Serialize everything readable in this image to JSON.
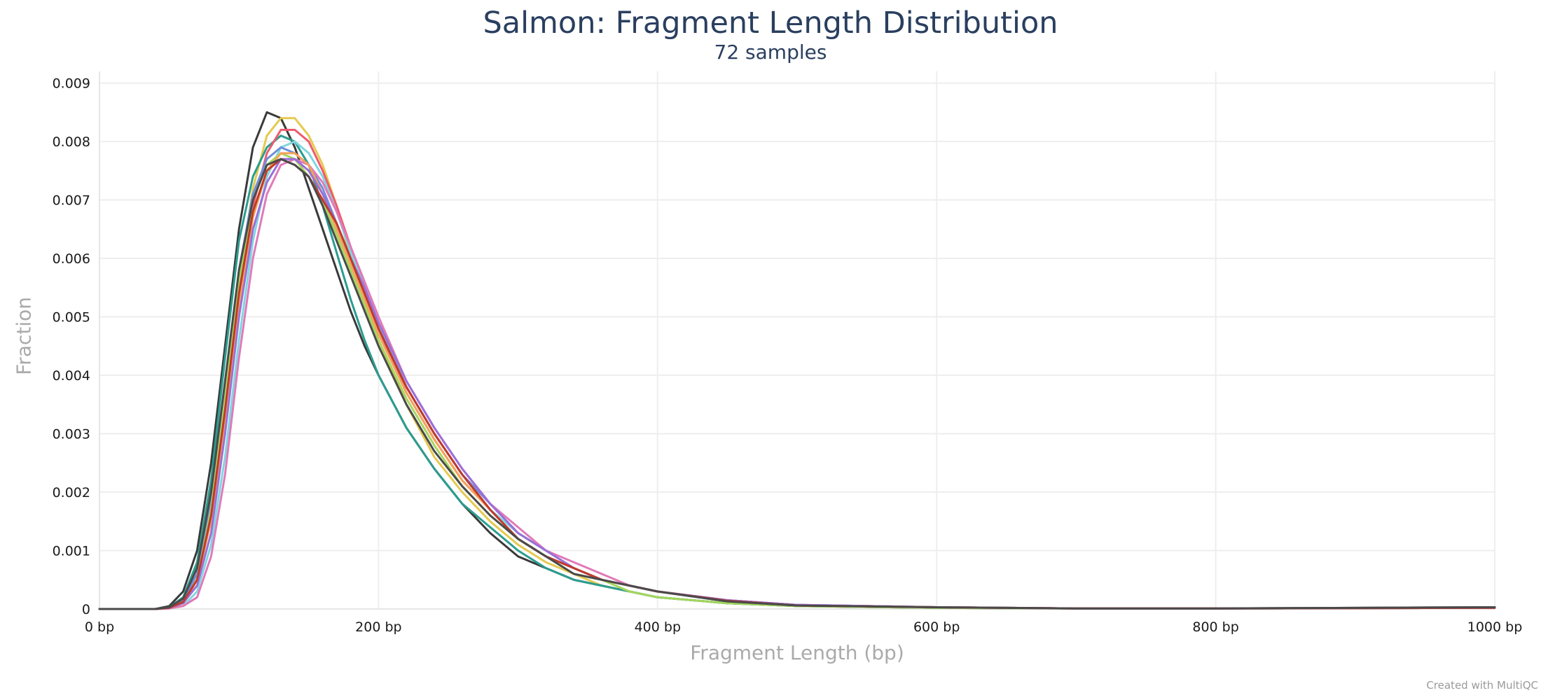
{
  "chart_data": {
    "type": "line",
    "title": "Salmon: Fragment Length Distribution",
    "subtitle": "72 samples",
    "xlabel": "Fragment Length (bp)",
    "ylabel": "Fraction",
    "xlim": [
      0,
      1000
    ],
    "ylim": [
      0,
      0.0092
    ],
    "x_ticks": [
      {
        "value": 0,
        "label": "0 bp"
      },
      {
        "value": 200,
        "label": "200 bp"
      },
      {
        "value": 400,
        "label": "400 bp"
      },
      {
        "value": 600,
        "label": "600 bp"
      },
      {
        "value": 800,
        "label": "800 bp"
      },
      {
        "value": 1000,
        "label": "1000 bp"
      }
    ],
    "y_ticks": [
      {
        "value": 0,
        "label": "0"
      },
      {
        "value": 0.001,
        "label": "0.001"
      },
      {
        "value": 0.002,
        "label": "0.002"
      },
      {
        "value": 0.003,
        "label": "0.003"
      },
      {
        "value": 0.004,
        "label": "0.004"
      },
      {
        "value": 0.005,
        "label": "0.005"
      },
      {
        "value": 0.006,
        "label": "0.006"
      },
      {
        "value": 0.007,
        "label": "0.007"
      },
      {
        "value": 0.008,
        "label": "0.008"
      },
      {
        "value": 0.009,
        "label": "0.009"
      }
    ],
    "grid": true,
    "legend": "none",
    "x": [
      0,
      40,
      50,
      60,
      70,
      80,
      90,
      100,
      110,
      120,
      130,
      140,
      150,
      160,
      170,
      180,
      190,
      200,
      220,
      240,
      260,
      280,
      300,
      320,
      340,
      360,
      380,
      400,
      450,
      500,
      600,
      700,
      800,
      1000
    ],
    "series": [
      {
        "color": "#3a3a3a",
        "values": [
          0,
          0,
          5e-05,
          0.0003,
          0.001,
          0.0025,
          0.0045,
          0.0065,
          0.0079,
          0.0085,
          0.0084,
          0.0079,
          0.0072,
          0.0065,
          0.0058,
          0.0051,
          0.0045,
          0.004,
          0.0031,
          0.0024,
          0.0018,
          0.0013,
          0.0009,
          0.0007,
          0.0005,
          0.0004,
          0.0003,
          0.0002,
          0.0001,
          5e-05,
          2e-05,
          1e-05,
          1e-05,
          3e-05
        ]
      },
      {
        "color": "#e5c94f",
        "values": [
          0,
          0,
          2e-05,
          0.0001,
          0.0006,
          0.0018,
          0.0036,
          0.0056,
          0.0072,
          0.0081,
          0.0084,
          0.0084,
          0.0081,
          0.0076,
          0.0069,
          0.006,
          0.0053,
          0.0046,
          0.0035,
          0.0026,
          0.002,
          0.0015,
          0.0011,
          0.0008,
          0.0006,
          0.0004,
          0.0003,
          0.0002,
          0.0001,
          5e-05,
          2e-05,
          1e-05,
          1e-05,
          2e-05
        ]
      },
      {
        "color": "#2a9d8f",
        "values": [
          0,
          0,
          3e-05,
          0.0002,
          0.0008,
          0.0022,
          0.0043,
          0.0063,
          0.0074,
          0.0079,
          0.0081,
          0.008,
          0.0076,
          0.0069,
          0.0061,
          0.0053,
          0.0046,
          0.004,
          0.0031,
          0.0024,
          0.0018,
          0.0014,
          0.001,
          0.0007,
          0.0005,
          0.0004,
          0.0003,
          0.0002,
          0.0001,
          5e-05,
          2e-05,
          1e-05,
          1e-05,
          2e-05
        ]
      },
      {
        "color": "#ef5a6f",
        "values": [
          0,
          0,
          2e-05,
          0.0001,
          0.0005,
          0.0016,
          0.0034,
          0.0054,
          0.0069,
          0.0078,
          0.0082,
          0.0082,
          0.008,
          0.0075,
          0.0069,
          0.0062,
          0.0055,
          0.0048,
          0.0037,
          0.0029,
          0.0022,
          0.0017,
          0.0012,
          0.0009,
          0.0007,
          0.0005,
          0.0004,
          0.0003,
          0.00015,
          7e-05,
          3e-05,
          1e-05,
          1e-05,
          2e-05
        ]
      },
      {
        "color": "#7fd6e0",
        "values": [
          0,
          0,
          1e-05,
          5e-05,
          0.0003,
          0.0011,
          0.0026,
          0.0046,
          0.0063,
          0.0074,
          0.0079,
          0.008,
          0.0078,
          0.0074,
          0.0068,
          0.0061,
          0.0055,
          0.0049,
          0.0038,
          0.003,
          0.0023,
          0.0017,
          0.0013,
          0.001,
          0.0007,
          0.0005,
          0.0004,
          0.0003,
          0.00015,
          7e-05,
          3e-05,
          1e-05,
          1e-05,
          2e-05
        ]
      },
      {
        "color": "#6f8fdc",
        "values": [
          0,
          0,
          2e-05,
          0.00015,
          0.0006,
          0.0019,
          0.0038,
          0.0058,
          0.0071,
          0.0077,
          0.0079,
          0.0078,
          0.0076,
          0.0072,
          0.0066,
          0.006,
          0.0054,
          0.0048,
          0.0038,
          0.003,
          0.0023,
          0.0018,
          0.0013,
          0.001,
          0.0007,
          0.0005,
          0.0004,
          0.0003,
          0.00015,
          7e-05,
          3e-05,
          1e-05,
          1e-05,
          2e-05
        ]
      },
      {
        "color": "#a4d65e",
        "values": [
          0,
          0,
          2e-05,
          0.0001,
          0.0005,
          0.0017,
          0.0036,
          0.0056,
          0.007,
          0.0076,
          0.0078,
          0.0077,
          0.0074,
          0.007,
          0.0064,
          0.0058,
          0.0052,
          0.0046,
          0.0036,
          0.0028,
          0.0021,
          0.0016,
          0.0012,
          0.0009,
          0.0006,
          0.0005,
          0.0003,
          0.0002,
          0.0001,
          5e-05,
          2e-05,
          1e-05,
          1e-05,
          2e-05
        ]
      },
      {
        "color": "#e07ab8",
        "values": [
          0,
          0,
          1e-05,
          5e-05,
          0.0002,
          0.0009,
          0.0023,
          0.0043,
          0.006,
          0.0071,
          0.0076,
          0.0077,
          0.0076,
          0.0073,
          0.0068,
          0.0062,
          0.0056,
          0.005,
          0.0039,
          0.0031,
          0.0024,
          0.0018,
          0.0014,
          0.001,
          0.0008,
          0.0006,
          0.0004,
          0.0003,
          0.00015,
          7e-05,
          3e-05,
          1e-05,
          1e-05,
          2e-05
        ]
      },
      {
        "color": "#f4a259",
        "values": [
          0,
          0,
          2e-05,
          0.0001,
          0.0005,
          0.0015,
          0.0032,
          0.0052,
          0.0067,
          0.0075,
          0.0078,
          0.0078,
          0.0076,
          0.0071,
          0.0065,
          0.0059,
          0.0053,
          0.0047,
          0.0037,
          0.0029,
          0.0022,
          0.0017,
          0.0012,
          0.0009,
          0.0007,
          0.0005,
          0.0004,
          0.0003,
          0.00014,
          6e-05,
          3e-05,
          1e-05,
          1e-05,
          2e-05
        ]
      },
      {
        "color": "#9b6fd8",
        "values": [
          0,
          0,
          2e-05,
          0.0001,
          0.0004,
          0.0013,
          0.003,
          0.005,
          0.0065,
          0.0073,
          0.0077,
          0.0077,
          0.0075,
          0.0071,
          0.0066,
          0.006,
          0.0055,
          0.0049,
          0.0039,
          0.0031,
          0.0024,
          0.0018,
          0.0013,
          0.001,
          0.0007,
          0.0005,
          0.0004,
          0.0003,
          0.00015,
          7e-05,
          3e-05,
          1e-05,
          1e-05,
          2e-05
        ]
      },
      {
        "color": "#c0392b",
        "values": [
          0,
          0,
          2e-05,
          0.00012,
          0.0005,
          0.0016,
          0.0034,
          0.0054,
          0.0068,
          0.0075,
          0.0077,
          0.0076,
          0.0074,
          0.007,
          0.0066,
          0.006,
          0.0054,
          0.0048,
          0.0038,
          0.003,
          0.0023,
          0.0017,
          0.0012,
          0.0009,
          0.0007,
          0.0005,
          0.0004,
          0.0003,
          0.00014,
          6e-05,
          3e-05,
          1e-05,
          1e-05,
          2e-05
        ]
      },
      {
        "color": "#4a4a4a",
        "values": [
          0,
          0,
          3e-05,
          0.00018,
          0.0007,
          0.002,
          0.0039,
          0.0058,
          0.007,
          0.0076,
          0.0077,
          0.0076,
          0.0074,
          0.0069,
          0.0063,
          0.0057,
          0.0051,
          0.0045,
          0.0035,
          0.0027,
          0.0021,
          0.0016,
          0.0012,
          0.0009,
          0.0006,
          0.0005,
          0.0004,
          0.0003,
          0.00013,
          6e-05,
          3e-05,
          1e-05,
          1e-05,
          3e-05
        ]
      }
    ]
  },
  "credit": "Created with MultiQC"
}
